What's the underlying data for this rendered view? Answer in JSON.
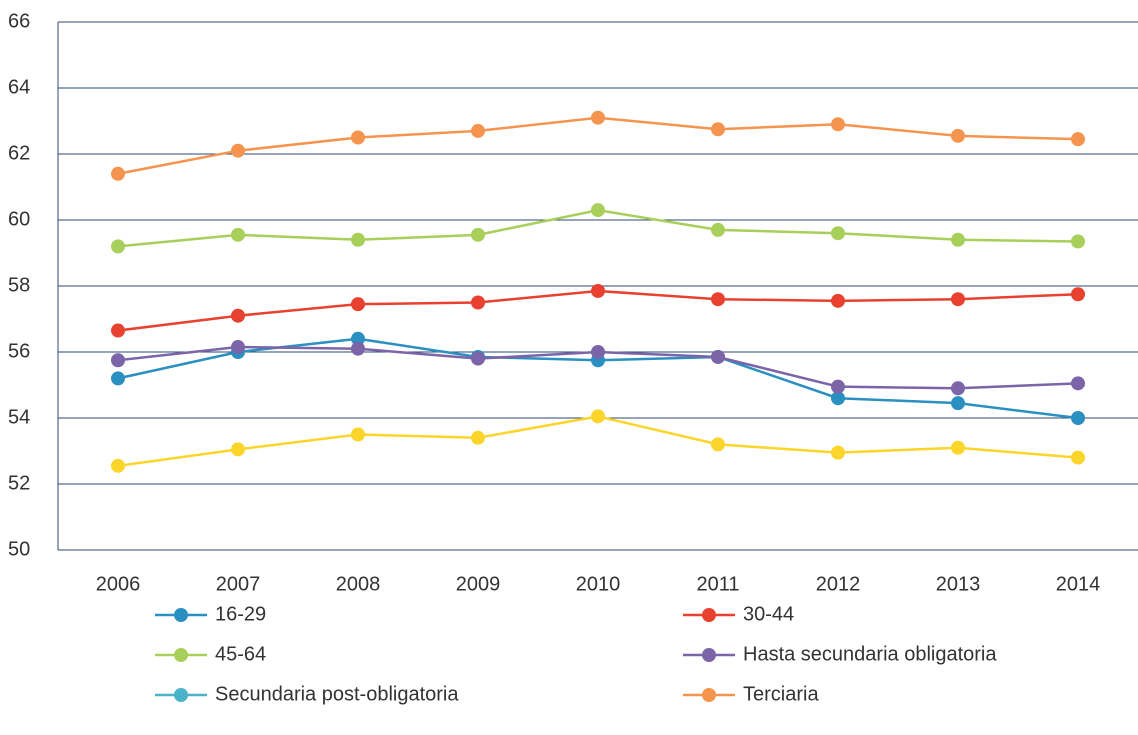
{
  "chart_data": {
    "type": "line",
    "categories": [
      "2006",
      "2007",
      "2008",
      "2009",
      "2010",
      "2011",
      "2012",
      "2013",
      "2014"
    ],
    "series": [
      {
        "name": "16-29",
        "color": "#2a8fc1",
        "values": [
          55.2,
          56.0,
          56.4,
          55.85,
          55.75,
          55.85,
          54.6,
          54.45,
          54.0
        ]
      },
      {
        "name": "30-44",
        "color": "#e8412f",
        "values": [
          56.65,
          57.1,
          57.45,
          57.5,
          57.85,
          57.6,
          57.55,
          57.6,
          57.75
        ]
      },
      {
        "name": "45-64",
        "color": "#a8cf5a",
        "values": [
          59.2,
          59.55,
          59.4,
          59.55,
          60.3,
          59.7,
          59.6,
          59.4,
          59.35
        ]
      },
      {
        "name": "Hasta secundaria obligatoria",
        "color": "#7b64a8",
        "values": [
          55.75,
          56.15,
          56.1,
          55.8,
          56.0,
          55.85,
          54.95,
          54.9,
          55.05
        ]
      },
      {
        "name": "Secundaria post-obligatoria",
        "color": "#4bb3c9",
        "values": [
          null,
          null,
          null,
          null,
          null,
          null,
          null,
          null,
          null
        ]
      },
      {
        "name": "Terciaria",
        "color": "#f5944e",
        "values": [
          61.4,
          62.1,
          62.5,
          62.7,
          63.1,
          62.75,
          62.9,
          62.55,
          62.45
        ]
      },
      {
        "color": "#fcd52b",
        "values": [
          52.55,
          53.05,
          53.5,
          53.4,
          54.05,
          53.2,
          52.95,
          53.1,
          52.8
        ]
      }
    ],
    "ylim": [
      50,
      66
    ],
    "yticks": [
      50,
      52,
      54,
      56,
      58,
      60,
      62,
      64,
      66
    ],
    "grid": true
  }
}
